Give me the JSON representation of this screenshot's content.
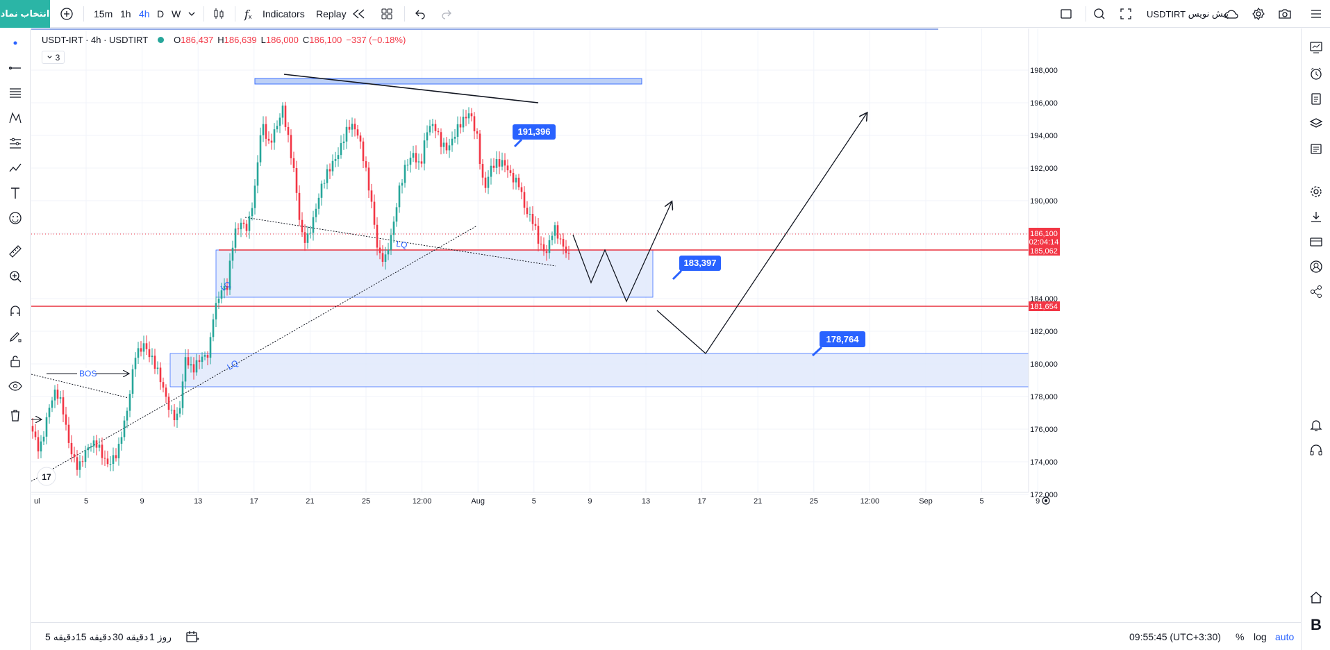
{
  "toolbar": {
    "symbol_search_label": "انتخاب نماد",
    "intervals": [
      "15m",
      "1h",
      "4h",
      "D",
      "W"
    ],
    "active_interval": "4h",
    "indicators_label": "Indicators",
    "replay_label": "Replay",
    "publish_label": "پیش نویس",
    "layout_symbol": "USDTIRT"
  },
  "legend": {
    "title": "USDT-IRT · 4h · USDTIRT",
    "open_key": "O",
    "open": "186,437",
    "high_key": "H",
    "high": "186,639",
    "low_key": "L",
    "low": "186,000",
    "close_key": "C",
    "close": "186,100",
    "change": "−337 (−0.18%)",
    "indicator_count": "3"
  },
  "price_axis": {
    "ticks": [
      "198,000",
      "196,000",
      "194,000",
      "192,000",
      "190,000",
      "188,000",
      "184,000",
      "182,000",
      "180,000",
      "178,000",
      "176,000",
      "174,000",
      "172,000"
    ],
    "last_price": "186,100",
    "countdown": "02:04:14",
    "level_upper": "185,062",
    "level_lower": "181,654"
  },
  "time_axis": {
    "ticks": [
      "ul",
      "5",
      "9",
      "13",
      "17",
      "21",
      "25",
      "12:00",
      "Aug",
      "5",
      "9",
      "13",
      "17",
      "21",
      "25",
      "12:00",
      "Sep",
      "5",
      "9"
    ]
  },
  "annotations": {
    "bos": "BOS",
    "lq": "LQ",
    "label_a": "191,396",
    "label_b": "183,397",
    "label_c": "178,764"
  },
  "bottom": {
    "ranges": [
      "5 دقیقه",
      "15 دقیقه",
      "30 دقیقه",
      "1 روز"
    ],
    "clock": "09:55:45 (UTC+3:30)",
    "percent": "%",
    "log": "log",
    "auto": "auto"
  },
  "colors": {
    "up": "#26a69a",
    "down": "#f23645",
    "accent": "#2962ff",
    "zone": "#e8efff"
  },
  "chart_data": {
    "type": "candlestick",
    "symbol": "USDT-IRT",
    "ylim": [
      171000,
      199000
    ],
    "levels": [
      185062,
      181654
    ],
    "zones": [
      [
        185062,
        182200
      ],
      [
        178764,
        176700
      ],
      [
        195500,
        195200
      ]
    ],
    "callouts": [
      191396,
      183397,
      178764
    ]
  }
}
